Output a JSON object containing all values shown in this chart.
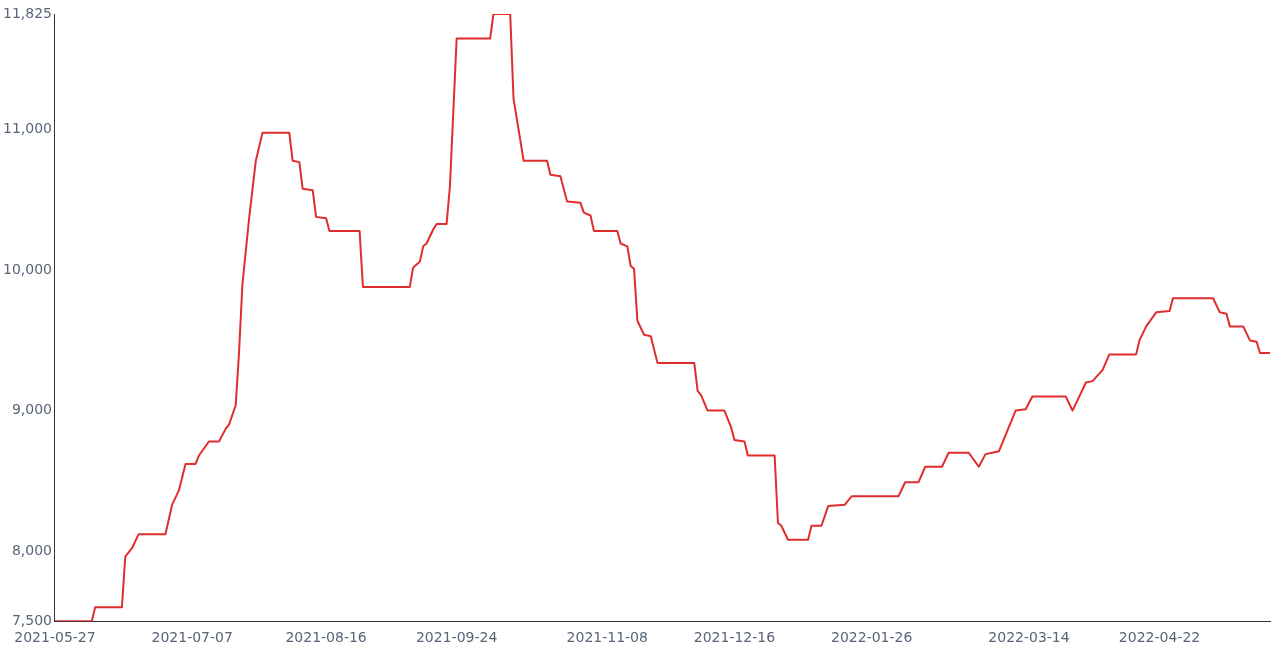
{
  "chart_data": {
    "type": "line",
    "color": "#e02d2d",
    "marker": "none",
    "line_style": "solid",
    "grid": false,
    "legend": false,
    "x": [
      "2021-05-27",
      "2021-06-07",
      "2021-06-08",
      "2021-06-16",
      "2021-06-17",
      "2021-06-19",
      "2021-06-21",
      "2021-06-29",
      "2021-07-01",
      "2021-07-03",
      "2021-07-05",
      "2021-07-08",
      "2021-07-09",
      "2021-07-12",
      "2021-07-15",
      "2021-07-17",
      "2021-07-18",
      "2021-07-20",
      "2021-07-21",
      "2021-07-22",
      "2021-07-24",
      "2021-07-26",
      "2021-07-28",
      "2021-08-05",
      "2021-08-06",
      "2021-08-08",
      "2021-08-09",
      "2021-08-12",
      "2021-08-13",
      "2021-08-16",
      "2021-08-17",
      "2021-08-26",
      "2021-08-27",
      "2021-09-10",
      "2021-09-11",
      "2021-09-13",
      "2021-09-14",
      "2021-09-15",
      "2021-09-17",
      "2021-09-18",
      "2021-09-21",
      "2021-09-22",
      "2021-09-24",
      "2021-10-04",
      "2021-10-05",
      "2021-10-10",
      "2021-10-11",
      "2021-10-13",
      "2021-10-14",
      "2021-10-21",
      "2021-10-22",
      "2021-10-25",
      "2021-10-27",
      "2021-10-31",
      "2021-11-01",
      "2021-11-03",
      "2021-11-04",
      "2021-11-11",
      "2021-11-12",
      "2021-11-14",
      "2021-11-15",
      "2021-11-16",
      "2021-11-17",
      "2021-11-19",
      "2021-11-21",
      "2021-11-23",
      "2021-12-04",
      "2021-12-05",
      "2021-12-06",
      "2021-12-08",
      "2021-12-13",
      "2021-12-15",
      "2021-12-16",
      "2021-12-19",
      "2021-12-20",
      "2021-12-28",
      "2021-12-29",
      "2021-12-30",
      "2022-01-01",
      "2022-01-07",
      "2022-01-08",
      "2022-01-11",
      "2022-01-13",
      "2022-01-18",
      "2022-01-20",
      "2022-02-03",
      "2022-02-05",
      "2022-02-09",
      "2022-02-11",
      "2022-02-16",
      "2022-02-18",
      "2022-02-24",
      "2022-02-27",
      "2022-03-01",
      "2022-03-03",
      "2022-03-05",
      "2022-03-10",
      "2022-03-13",
      "2022-03-15",
      "2022-03-25",
      "2022-03-27",
      "2022-03-29",
      "2022-03-31",
      "2022-04-02",
      "2022-04-05",
      "2022-04-07",
      "2022-04-15",
      "2022-04-16",
      "2022-04-18",
      "2022-04-21",
      "2022-04-25",
      "2022-04-26",
      "2022-05-08",
      "2022-05-10",
      "2022-05-12",
      "2022-05-13",
      "2022-05-17",
      "2022-05-19",
      "2022-05-21",
      "2022-05-22",
      "2022-05-25"
    ],
    "values": [
      7500,
      7500,
      7600,
      7600,
      7960,
      8020,
      8120,
      8120,
      8330,
      8430,
      8620,
      8620,
      8680,
      8780,
      8780,
      8870,
      8900,
      9040,
      9420,
      9900,
      10370,
      10780,
      10980,
      10980,
      10780,
      10770,
      10580,
      10570,
      10380,
      10370,
      10280,
      10280,
      9880,
      9880,
      10020,
      10060,
      10170,
      10190,
      10290,
      10330,
      10330,
      10600,
      11650,
      11650,
      11825,
      11825,
      11220,
      10930,
      10780,
      10780,
      10680,
      10670,
      10490,
      10480,
      10410,
      10390,
      10280,
      10280,
      10190,
      10170,
      10030,
      10010,
      9640,
      9540,
      9530,
      9340,
      9340,
      9140,
      9110,
      9000,
      9000,
      8880,
      8790,
      8780,
      8680,
      8680,
      8200,
      8180,
      8080,
      8080,
      8180,
      8180,
      8320,
      8330,
      8390,
      8390,
      8490,
      8490,
      8600,
      8600,
      8700,
      8700,
      8600,
      8690,
      8700,
      8710,
      9000,
      9010,
      9100,
      9100,
      9000,
      9100,
      9200,
      9210,
      9290,
      9400,
      9400,
      9500,
      9600,
      9700,
      9710,
      9800,
      9800,
      9700,
      9690,
      9600,
      9600,
      9500,
      9490,
      9410,
      9410
    ],
    "xlim": [
      "2021-05-27",
      "2022-05-25"
    ],
    "xticks": [
      "2021-05-27",
      "2021-07-07",
      "2021-08-16",
      "2021-09-24",
      "2021-11-08",
      "2021-12-16",
      "2022-01-26",
      "2022-03-14",
      "2022-04-22"
    ],
    "ylim": [
      7500,
      11825
    ],
    "yticks": [
      {
        "value": 7500,
        "label": "7,500"
      },
      {
        "value": 8000,
        "label": "8,000"
      },
      {
        "value": 9000,
        "label": "9,000"
      },
      {
        "value": 10000,
        "label": "10,000"
      },
      {
        "value": 11000,
        "label": "11,000"
      },
      {
        "value": 11825,
        "label": "11,825"
      }
    ]
  }
}
